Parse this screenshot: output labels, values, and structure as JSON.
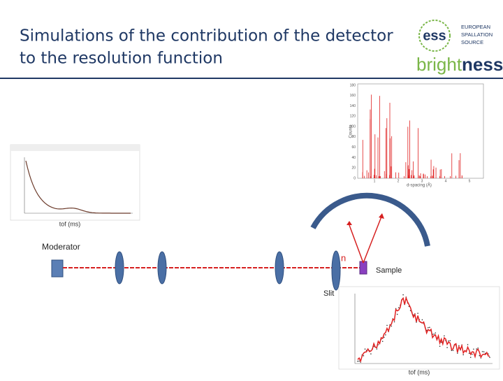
{
  "header": {
    "title_lines": [
      "Simulations of the contribution of the detector",
      "to the resolution function"
    ],
    "logo": {
      "mark": "ess",
      "name_lines": [
        "EUROPEAN",
        "SPALLATION",
        "SOURCE"
      ],
      "brand_light": "bright",
      "brand_bold": "ness"
    }
  },
  "plots": {
    "diffraction": {
      "y_label": "Counts",
      "x_label": "d-spacing (Å)",
      "yticks": [
        "180",
        "160",
        "140",
        "120",
        "100",
        "80",
        "60",
        "40",
        "20",
        "0"
      ],
      "xticks": [
        "1",
        "2",
        "3",
        "4",
        "5"
      ]
    },
    "moderator_spectrum": {
      "x_label": "tof (ms)"
    },
    "detector_spectrum": {
      "x_label": "tof (ms)"
    }
  },
  "diagram": {
    "moderator": "Moderator",
    "neutron": "n",
    "sample": "Sample",
    "slit": "Slit"
  }
}
